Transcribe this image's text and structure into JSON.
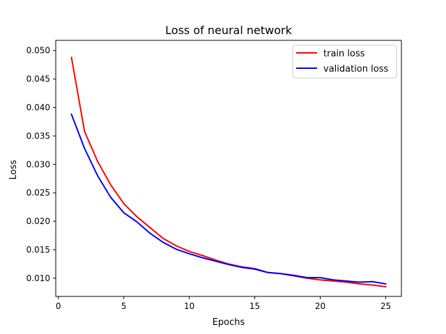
{
  "chart_data": {
    "type": "line",
    "title": "Loss of neural network",
    "xlabel": "Epochs",
    "ylabel": "Loss",
    "xlim": [
      -0.2,
      26.2
    ],
    "ylim": [
      0.0068,
      0.0518
    ],
    "xticks": [
      0,
      5,
      10,
      15,
      20,
      25
    ],
    "yticks": [
      0.01,
      0.015,
      0.02,
      0.025,
      0.03,
      0.035,
      0.04,
      0.045,
      0.05
    ],
    "ytick_labels": [
      "0.010",
      "0.015",
      "0.020",
      "0.025",
      "0.030",
      "0.035",
      "0.040",
      "0.045",
      "0.050"
    ],
    "grid": false,
    "legend_position": "top-right",
    "x": [
      1,
      2,
      3,
      4,
      5,
      6,
      7,
      8,
      9,
      10,
      11,
      12,
      13,
      14,
      15,
      16,
      17,
      18,
      19,
      20,
      21,
      22,
      23,
      24,
      25
    ],
    "series": [
      {
        "name": "train loss",
        "color": "#ff0000",
        "values": [
          0.0488,
          0.0358,
          0.0305,
          0.0264,
          0.0231,
          0.0208,
          0.0189,
          0.017,
          0.0157,
          0.0147,
          0.014,
          0.0132,
          0.0125,
          0.012,
          0.0117,
          0.011,
          0.0108,
          0.0104,
          0.01,
          0.0097,
          0.0095,
          0.0093,
          0.009,
          0.0088,
          0.0085
        ]
      },
      {
        "name": "validation loss",
        "color": "#0000ff",
        "values": [
          0.0388,
          0.0328,
          0.028,
          0.0242,
          0.0215,
          0.0199,
          0.0179,
          0.0163,
          0.0151,
          0.0143,
          0.0136,
          0.013,
          0.0124,
          0.0119,
          0.0116,
          0.011,
          0.0108,
          0.0105,
          0.0101,
          0.0101,
          0.0097,
          0.0095,
          0.0093,
          0.0094,
          0.009
        ]
      }
    ]
  }
}
